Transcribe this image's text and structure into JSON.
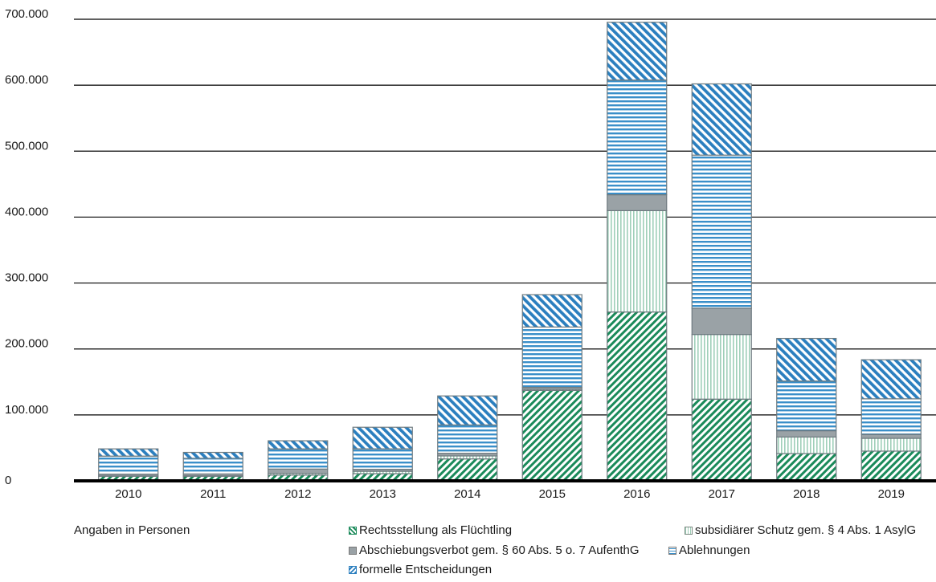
{
  "note": "Angaben in Personen",
  "chart_data": {
    "type": "bar",
    "stacked": true,
    "categories": [
      "2010",
      "2011",
      "2012",
      "2013",
      "2014",
      "2015",
      "2016",
      "2017",
      "2018",
      "2019"
    ],
    "ylim": [
      0,
      700000
    ],
    "yticks": [
      "0",
      "100.000",
      "200.000",
      "300.000",
      "400.000",
      "500.000",
      "600.000",
      "700.000"
    ],
    "ytick_values": [
      0,
      100000,
      200000,
      300000,
      400000,
      500000,
      600000,
      700000
    ],
    "grid": true,
    "legend_position": "bottom",
    "series": [
      {
        "name": "Rechtsstellung als Flüchtling",
        "color": "#1a8a5a",
        "values": [
          7000,
          7000,
          8700,
          10900,
          33300,
          137100,
          256100,
          123900,
          41400,
          45100
        ]
      },
      {
        "name": "subsidiärer Schutz gem. § 4 Abs. 1 AsylG",
        "color": "#9fcfb9",
        "values": [
          500,
          700,
          2600,
          3600,
          4500,
          1700,
          153700,
          98100,
          25100,
          19400
        ]
      },
      {
        "name": "Abschiebungsverbot gem. § 60 Abs. 5 o. 7 AufenthG",
        "color": "#9aa2a6",
        "values": [
          2700,
          2800,
          6600,
          3000,
          4000,
          3000,
          24100,
          39700,
          9500,
          5900
        ]
      },
      {
        "name": "Ablehnungen",
        "color": "#3a8fc9",
        "values": [
          27300,
          23700,
          30600,
          31100,
          43000,
          91500,
          173900,
          232300,
          75400,
          54000
        ]
      },
      {
        "name": "formelle Entscheidungen",
        "color": "#2b7fbf",
        "values": [
          11000,
          9000,
          12300,
          32700,
          44000,
          49100,
          87700,
          108000,
          64600,
          59300
        ]
      }
    ]
  }
}
